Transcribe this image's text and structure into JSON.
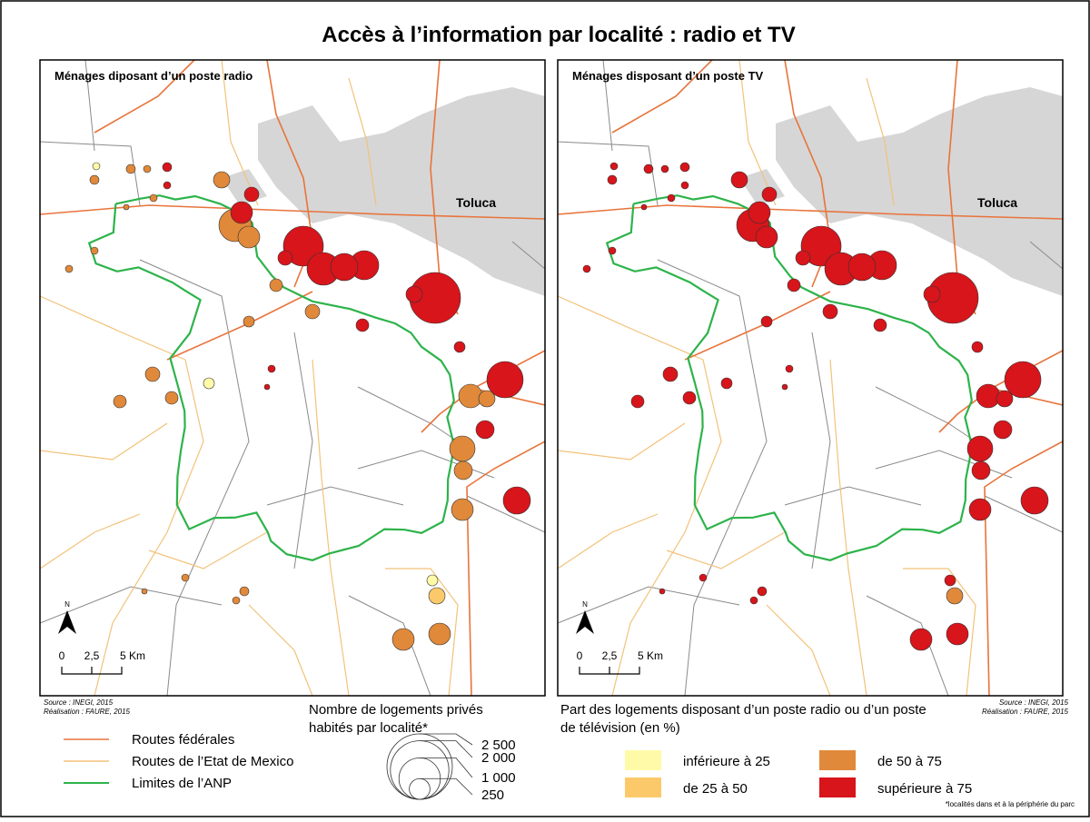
{
  "title": "Accès à l’information par localité : radio et TV",
  "maps": [
    {
      "title": "Ménages diposant d’un poste radio",
      "city": "Toluca",
      "north": "N",
      "scale": [
        "0",
        "2,5",
        "5 Km"
      ]
    },
    {
      "title": "Ménages disposant d’un poste TV",
      "city": "Toluca",
      "north": "N",
      "scale": [
        "0",
        "2,5",
        "5 Km"
      ]
    }
  ],
  "source": [
    "Source : INEGI, 2015",
    "Réalisation : FAURE, 2015"
  ],
  "line_legend": [
    {
      "label": "Routes fédérales",
      "color": "#e8743b"
    },
    {
      "label": "Routes de l’Etat de Mexico",
      "color": "#f2c27a"
    },
    {
      "label": "Limites de l’ANP",
      "color": "#2db34a"
    }
  ],
  "size_legend": {
    "title": [
      "Nombre de logements privés",
      "habités par localité*"
    ],
    "values": [
      {
        "value": 2500,
        "label": "2 500"
      },
      {
        "value": 2000,
        "label": "2 000"
      },
      {
        "value": 1000,
        "label": "1 000"
      },
      250
    ]
  },
  "color_legend": {
    "title": [
      "Part des logements disposant d’un poste radio ou d’un poste",
      "de télévision (en %)"
    ],
    "classes": [
      {
        "label": "inférieure à 25",
        "color": "#fffaa8"
      },
      {
        "label": "de 25 à 50",
        "color": "#fcc96a"
      },
      {
        "label": "de 50 à 75",
        "color": "#e0893a"
      },
      {
        "label": "supérieure à 75",
        "color": "#d7151b"
      }
    ]
  },
  "footnote": "*localités dans et à la périphérie du parc"
}
